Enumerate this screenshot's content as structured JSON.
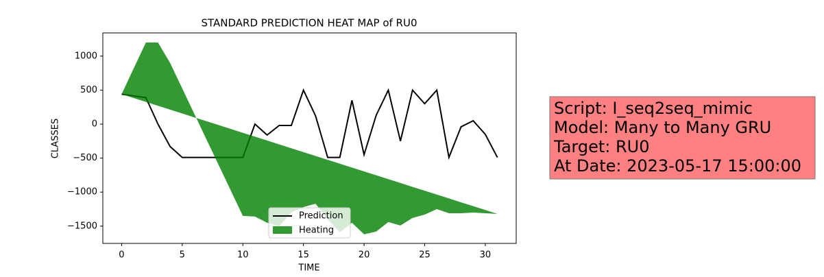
{
  "chart_data": {
    "type": "line",
    "title": "STANDARD PREDICTION HEAT MAP of RU0",
    "x_label": "TIME",
    "y_label": "CLASSES",
    "x": [
      0,
      1,
      2,
      3,
      4,
      5,
      6,
      7,
      8,
      9,
      10,
      11,
      12,
      13,
      14,
      15,
      16,
      17,
      18,
      19,
      20,
      21,
      22,
      23,
      24,
      25,
      26,
      27,
      28,
      29,
      30,
      31
    ],
    "series": [
      {
        "name": "Prediction",
        "type": "line",
        "color": "#000000",
        "values": [
          440,
          415,
          390,
          0,
          -330,
          -490,
          -490,
          -490,
          -490,
          -490,
          -490,
          0,
          -160,
          -20,
          -20,
          500,
          120,
          -490,
          -490,
          350,
          -450,
          130,
          500,
          -250,
          500,
          300,
          500,
          -490,
          -40,
          50,
          -150,
          -490
        ]
      },
      {
        "name": "Heating",
        "type": "fill_between",
        "color": "#008000",
        "alpha": 0.8,
        "values": [
          440,
          820,
          1200,
          1200,
          900,
          525,
          150,
          -225,
          -600,
          -975,
          -1350,
          -1360,
          -1450,
          -1500,
          -1300,
          -1220,
          -1170,
          -1400,
          -1590,
          -1450,
          -1620,
          -1580,
          -1440,
          -1490,
          -1380,
          -1330,
          -1250,
          -1310,
          -1310,
          -1300,
          -1310,
          -1320
        ],
        "values2": [
          440,
          383,
          326,
          270,
          213,
          156,
          99,
          43,
          -14,
          -71,
          -128,
          -184,
          -241,
          -298,
          -355,
          -412,
          -468,
          -525,
          -582,
          -639,
          -695,
          -752,
          -809,
          -866,
          -923,
          -979,
          -1036,
          -1093,
          -1150,
          -1206,
          -1263,
          -1320
        ]
      }
    ],
    "xlim": [
      -1.55,
      32.55
    ],
    "xticks": [
      0,
      5,
      10,
      15,
      20,
      25,
      30
    ],
    "ylim": [
      -1754,
      1341
    ],
    "yticks": [
      {
        "value": -1500,
        "label": "−1500"
      },
      {
        "value": -1000,
        "label": "−1000"
      },
      {
        "value": -500,
        "label": "−500"
      },
      0,
      500,
      1000
    ],
    "legend": "lower center",
    "annotation": [
      "Script: I_seq2seq_mimic",
      "Model: Many to Many GRU",
      "Target: RU0",
      "At Date: 2023-05-17 15:00:00"
    ]
  }
}
